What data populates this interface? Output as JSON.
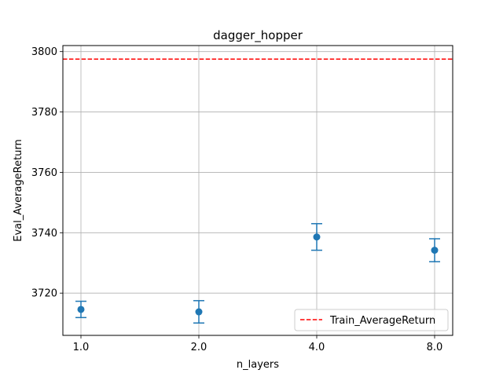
{
  "chart_data": {
    "type": "scatter",
    "title": "dagger_hopper",
    "xlabel": "n_layers",
    "ylabel": "Eval_AverageReturn",
    "categories": [
      "1.0",
      "2.0",
      "4.0",
      "8.0"
    ],
    "series": [
      {
        "type": "errorbar",
        "color": "#1f77b4",
        "values": [
          3714.6,
          3713.8,
          3738.6,
          3734.2
        ],
        "errors": [
          2.7,
          3.7,
          4.4,
          3.8
        ]
      },
      {
        "type": "hline",
        "name": "Train_AverageReturn",
        "color": "#ff0000",
        "linestyle": "dashed",
        "value": 3797.5
      }
    ],
    "yticks": [
      3720,
      3740,
      3760,
      3780,
      3800
    ],
    "ylim": [
      3706,
      3802
    ],
    "grid": true,
    "legend_position": "lower-right"
  }
}
